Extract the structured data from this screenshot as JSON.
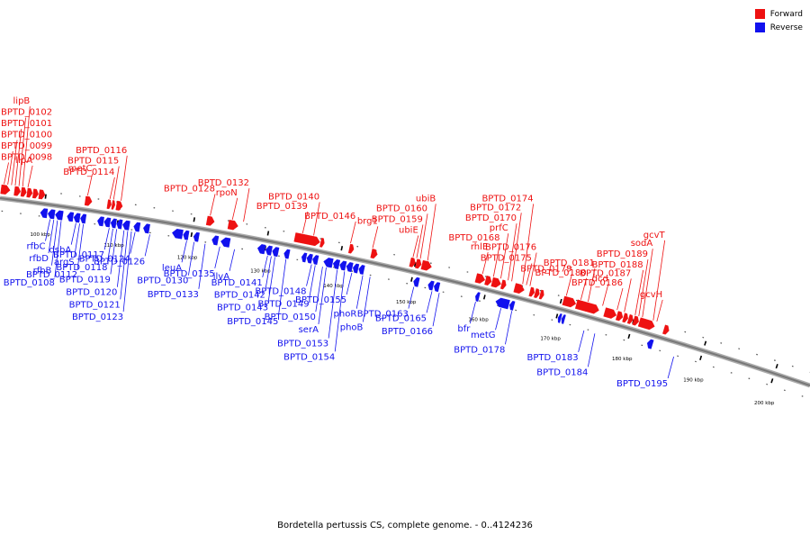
{
  "caption": "Bordetella pertussis CS, complete genome. - 0..4124236",
  "legend": [
    {
      "label": "Forward",
      "color": "#ee1111"
    },
    {
      "label": "Reverse",
      "color": "#1111ee"
    }
  ],
  "colors": {
    "forward": "#ee1111",
    "reverse": "#1111ee",
    "backbone": "#777777"
  },
  "genome_range": {
    "start_kbp": 94,
    "end_kbp": 205
  },
  "scale_ticks": [
    {
      "kbp": 100,
      "label": "100 kbp"
    },
    {
      "kbp": 110,
      "label": "110 kbp"
    },
    {
      "kbp": 120,
      "label": "120 kbp"
    },
    {
      "kbp": 130,
      "label": "130 kbp"
    },
    {
      "kbp": 140,
      "label": "140 kbp"
    },
    {
      "kbp": 150,
      "label": "150 kbp"
    },
    {
      "kbp": 160,
      "label": "160 kbp"
    },
    {
      "kbp": 170,
      "label": "170 kbp"
    },
    {
      "kbp": 180,
      "label": "180 kbp"
    },
    {
      "kbp": 190,
      "label": "190 kbp"
    },
    {
      "kbp": 200,
      "label": "200 kbp"
    }
  ],
  "forward_labels": [
    {
      "name": "lipB",
      "kbp": 96.8
    },
    {
      "name": "BPTD_0102",
      "kbp": 96.3
    },
    {
      "name": "BPTD_0101",
      "kbp": 95.8
    },
    {
      "name": "BPTD_0100",
      "kbp": 95.3
    },
    {
      "name": "BPTD_0099",
      "kbp": 94.8
    },
    {
      "name": "BPTD_0098",
      "kbp": 94.3
    },
    {
      "name": "lipA",
      "kbp": 97.5
    },
    {
      "name": "metC",
      "kbp": 105.5
    },
    {
      "name": "BPTD_0115",
      "kbp": 109.0
    },
    {
      "name": "BPTD_0114",
      "kbp": 108.5
    },
    {
      "name": "BPTD_0116",
      "kbp": 110.0
    },
    {
      "name": "BPTD_0128",
      "kbp": 122.0
    },
    {
      "name": "rpoN",
      "kbp": 125.0
    },
    {
      "name": "BPTD_0132",
      "kbp": 126.5
    },
    {
      "name": "BPTD_0139",
      "kbp": 134.5
    },
    {
      "name": "BPTD_0140",
      "kbp": 136.0
    },
    {
      "name": "BPTD_0146",
      "kbp": 141.0
    },
    {
      "name": "brg1",
      "kbp": 144.0
    },
    {
      "name": "ubiE",
      "kbp": 149.5
    },
    {
      "name": "BPTD_0160",
      "kbp": 150.5
    },
    {
      "name": "BPTD_0159",
      "kbp": 150.0
    },
    {
      "name": "ubiB",
      "kbp": 151.5
    },
    {
      "name": "rhlE",
      "kbp": 159.0
    },
    {
      "name": "BPTD_0168",
      "kbp": 160.5
    },
    {
      "name": "prfC",
      "kbp": 161.5
    },
    {
      "name": "BPTD_0172",
      "kbp": 163.0
    },
    {
      "name": "BPTD_0170",
      "kbp": 162.5
    },
    {
      "name": "BPTD_0175",
      "kbp": 165.0
    },
    {
      "name": "BPTD_0174",
      "kbp": 164.5
    },
    {
      "name": "BPTD_0176",
      "kbp": 165.5
    },
    {
      "name": "BPTD_0179",
      "kbp": 170.5
    },
    {
      "name": "BPTD_0180",
      "kbp": 172.5
    },
    {
      "name": "BPTD_0181",
      "kbp": 173.5
    },
    {
      "name": "dcd",
      "kbp": 175.5
    },
    {
      "name": "BPTD_0186",
      "kbp": 177.5
    },
    {
      "name": "BPTD_0187",
      "kbp": 178.5
    },
    {
      "name": "sodA",
      "kbp": 181.0
    },
    {
      "name": "BPTD_0189",
      "kbp": 180.5
    },
    {
      "name": "BPTD_0188",
      "kbp": 180.0
    },
    {
      "name": "gcvH",
      "kbp": 183.0
    },
    {
      "name": "gcvT",
      "kbp": 182.5
    }
  ],
  "reverse_labels": [
    {
      "name": "rfbC",
      "kbp": 101.0
    },
    {
      "name": "rfbD",
      "kbp": 101.5
    },
    {
      "name": "rfbB",
      "kbp": 102.0
    },
    {
      "name": "BPTD_0108",
      "kbp": 102.5
    },
    {
      "name": "dsbA",
      "kbp": 104.5
    },
    {
      "name": "argS",
      "kbp": 105.0
    },
    {
      "name": "BPTD_0112",
      "kbp": 105.5
    },
    {
      "name": "BPTD_0119",
      "kbp": 110.0
    },
    {
      "name": "BPTD_0120",
      "kbp": 111.0
    },
    {
      "name": "BPTD_0117",
      "kbp": 109.0
    },
    {
      "name": "BPTD_0118",
      "kbp": 109.5
    },
    {
      "name": "BPTD_0124",
      "kbp": 112.5
    },
    {
      "name": "BPTD_0121",
      "kbp": 111.5
    },
    {
      "name": "BPTD_0126",
      "kbp": 114.5
    },
    {
      "name": "BPTD_0123",
      "kbp": 112.0
    },
    {
      "name": "leuA",
      "kbp": 119.5
    },
    {
      "name": "BPTD_0133",
      "kbp": 122.0
    },
    {
      "name": "BPTD_0130",
      "kbp": 120.5
    },
    {
      "name": "ilvA",
      "kbp": 126.0
    },
    {
      "name": "BPTD_0135",
      "kbp": 124.0
    },
    {
      "name": "BPTD_0141",
      "kbp": 130.5
    },
    {
      "name": "BPTD_0142",
      "kbp": 131.0
    },
    {
      "name": "BPTD_0143",
      "kbp": 131.5
    },
    {
      "name": "BPTD_0145",
      "kbp": 133.0
    },
    {
      "name": "BPTD_0150",
      "kbp": 138.0
    },
    {
      "name": "serA",
      "kbp": 138.5
    },
    {
      "name": "BPTD_0148",
      "kbp": 136.5
    },
    {
      "name": "BPTD_0149",
      "kbp": 137.0
    },
    {
      "name": "phoB",
      "kbp": 144.5
    },
    {
      "name": "phoR",
      "kbp": 143.5
    },
    {
      "name": "BPTD_0155",
      "kbp": 142.0
    },
    {
      "name": "BPTD_0153",
      "kbp": 140.0
    },
    {
      "name": "BPTD_0154",
      "kbp": 141.0
    },
    {
      "name": "BPTD_0163",
      "kbp": 150.5
    },
    {
      "name": "BPTD_0166",
      "kbp": 154.0
    },
    {
      "name": "BPTD_0165",
      "kbp": 153.0
    },
    {
      "name": "bfr",
      "kbp": 159.0
    },
    {
      "name": "metG",
      "kbp": 162.5
    },
    {
      "name": "BPTD_0178",
      "kbp": 164.0
    },
    {
      "name": "BPTD_0183",
      "kbp": 174.0
    },
    {
      "name": "BPTD_0184",
      "kbp": 175.5
    },
    {
      "name": "BPTD_0195",
      "kbp": 186.5
    }
  ],
  "forward_genes": [
    {
      "start": 94.0,
      "end": 95.2
    },
    {
      "start": 95.8,
      "end": 96.6
    },
    {
      "start": 96.7,
      "end": 97.4
    },
    {
      "start": 97.5,
      "end": 98.2
    },
    {
      "start": 98.3,
      "end": 99.0
    },
    {
      "start": 99.1,
      "end": 99.9
    },
    {
      "start": 105.3,
      "end": 106.2
    },
    {
      "start": 108.3,
      "end": 108.8
    },
    {
      "start": 108.9,
      "end": 109.3
    },
    {
      "start": 109.5,
      "end": 110.3
    },
    {
      "start": 121.7,
      "end": 122.7
    },
    {
      "start": 124.6,
      "end": 125.9
    },
    {
      "start": 133.6,
      "end": 137.0
    },
    {
      "start": 137.1,
      "end": 137.6
    },
    {
      "start": 141.0,
      "end": 141.6
    },
    {
      "start": 144.0,
      "end": 144.8
    },
    {
      "start": 149.3,
      "end": 150.0
    },
    {
      "start": 150.1,
      "end": 150.8
    },
    {
      "start": 150.9,
      "end": 152.2
    },
    {
      "start": 158.3,
      "end": 159.5
    },
    {
      "start": 159.6,
      "end": 160.4
    },
    {
      "start": 160.5,
      "end": 161.7
    },
    {
      "start": 161.8,
      "end": 162.4
    },
    {
      "start": 163.6,
      "end": 164.9
    },
    {
      "start": 165.7,
      "end": 166.3
    },
    {
      "start": 166.4,
      "end": 167.0
    },
    {
      "start": 167.1,
      "end": 167.6
    },
    {
      "start": 170.3,
      "end": 172.0
    },
    {
      "start": 172.1,
      "end": 175.2
    },
    {
      "start": 176.0,
      "end": 177.6
    },
    {
      "start": 177.7,
      "end": 178.5
    },
    {
      "start": 178.6,
      "end": 179.2
    },
    {
      "start": 179.3,
      "end": 179.9
    },
    {
      "start": 180.0,
      "end": 180.7
    },
    {
      "start": 180.8,
      "end": 182.9
    },
    {
      "start": 184.2,
      "end": 184.9
    }
  ],
  "reverse_genes": [
    {
      "start": 99.6,
      "end": 100.5
    },
    {
      "start": 100.6,
      "end": 101.5
    },
    {
      "start": 101.6,
      "end": 102.6
    },
    {
      "start": 103.2,
      "end": 104.0
    },
    {
      "start": 104.1,
      "end": 104.9
    },
    {
      "start": 105.0,
      "end": 105.7
    },
    {
      "start": 107.3,
      "end": 108.1
    },
    {
      "start": 108.2,
      "end": 109.0
    },
    {
      "start": 109.1,
      "end": 109.8
    },
    {
      "start": 109.9,
      "end": 110.6
    },
    {
      "start": 110.7,
      "end": 111.6
    },
    {
      "start": 112.2,
      "end": 113.0
    },
    {
      "start": 113.5,
      "end": 114.3
    },
    {
      "start": 117.4,
      "end": 118.8
    },
    {
      "start": 118.9,
      "end": 119.6
    },
    {
      "start": 120.3,
      "end": 121.0
    },
    {
      "start": 122.8,
      "end": 123.6
    },
    {
      "start": 124.0,
      "end": 125.2
    },
    {
      "start": 129.0,
      "end": 130.0
    },
    {
      "start": 130.1,
      "end": 130.9
    },
    {
      "start": 131.0,
      "end": 131.8
    },
    {
      "start": 132.6,
      "end": 133.3
    },
    {
      "start": 135.0,
      "end": 135.6
    },
    {
      "start": 135.7,
      "end": 136.4
    },
    {
      "start": 136.5,
      "end": 137.2
    },
    {
      "start": 138.0,
      "end": 139.2
    },
    {
      "start": 139.3,
      "end": 140.1
    },
    {
      "start": 140.2,
      "end": 141.0
    },
    {
      "start": 141.1,
      "end": 141.9
    },
    {
      "start": 142.0,
      "end": 142.7
    },
    {
      "start": 142.8,
      "end": 143.5
    },
    {
      "start": 150.3,
      "end": 151.0
    },
    {
      "start": 152.3,
      "end": 153.0
    },
    {
      "start": 153.1,
      "end": 153.8
    },
    {
      "start": 158.8,
      "end": 159.3
    },
    {
      "start": 161.6,
      "end": 163.4
    },
    {
      "start": 163.5,
      "end": 164.1
    },
    {
      "start": 170.2,
      "end": 170.6
    },
    {
      "start": 170.7,
      "end": 171.1
    },
    {
      "start": 182.6,
      "end": 183.3
    }
  ]
}
